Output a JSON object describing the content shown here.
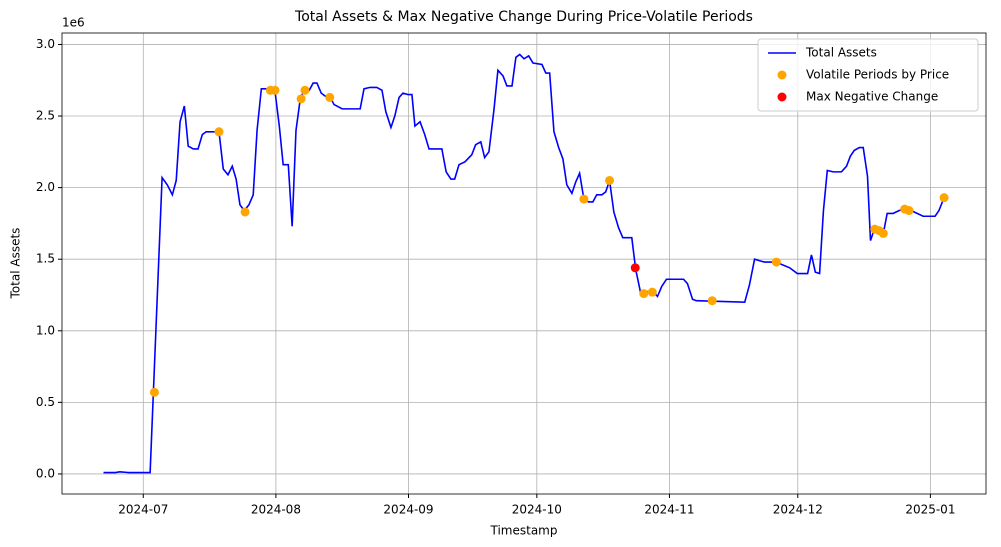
{
  "chart_data": {
    "type": "line",
    "title": "Total Assets & Max Negative Change During Price-Volatile Periods",
    "x_label": "Timestamp",
    "y_label": "Total Assets",
    "y_offset_label": "1e6",
    "xlim": [
      -19,
      197
    ],
    "ylim": [
      -0.14,
      3.08
    ],
    "xticks": [
      {
        "value": 0,
        "label": "2024-07"
      },
      {
        "value": 31,
        "label": "2024-08"
      },
      {
        "value": 62,
        "label": "2024-09"
      },
      {
        "value": 92,
        "label": "2024-10"
      },
      {
        "value": 123,
        "label": "2024-11"
      },
      {
        "value": 153,
        "label": "2024-12"
      },
      {
        "value": 184,
        "label": "2025-01"
      }
    ],
    "yticks": [
      {
        "value": 0,
        "label": "0.0"
      },
      0.5,
      {
        "value": 1,
        "label": "1.0"
      },
      1.5,
      {
        "value": 2,
        "label": "2.0"
      },
      2.5,
      {
        "value": 3,
        "label": "3.0"
      }
    ],
    "grid": true,
    "legend": "upper right",
    "series": [
      {
        "name": "Total Assets",
        "type": "line",
        "color": "#0000ff",
        "x": [
          -9.3,
          -6.5,
          -5.5,
          -3.5,
          1.6,
          4.4,
          5.6,
          6.8,
          7.7,
          8.6,
          9.6,
          10.5,
          11.7,
          12.8,
          13.8,
          14.7,
          17.7,
          18.7,
          19.8,
          20.8,
          21.7,
          22.6,
          23.6,
          24.7,
          25.7,
          26.6,
          27.6,
          29.2,
          30.8,
          31.8,
          32.7,
          33.9,
          34.8,
          35.7,
          36.7,
          37.6,
          38.8,
          39.7,
          40.6,
          41.6,
          42.5,
          43.7,
          44.6,
          46.5,
          50.7,
          51.6,
          53,
          54.6,
          55.8,
          56.7,
          57.9,
          58.8,
          59.8,
          60.7,
          61.9,
          62.8,
          63.5,
          64.7,
          65.8,
          66.8,
          69.8,
          70.8,
          71.9,
          72.8,
          73.8,
          75.2,
          76.8,
          77.7,
          78.9,
          79.8,
          80.8,
          82,
          82.9,
          84.1,
          85,
          86.2,
          87.1,
          88,
          89,
          90.1,
          91.1,
          93.2,
          94.1,
          95,
          96,
          97.1,
          98.1,
          99,
          100.2,
          101.1,
          102,
          103,
          104.1,
          105.1,
          106,
          107.2,
          108.1,
          109,
          110,
          111.1,
          112.1,
          114.2,
          115.1,
          116.3,
          117.2,
          118.2,
          119.3,
          120.2,
          121.2,
          122.3,
          126.3,
          127.2,
          128.4,
          129.3,
          140.6,
          141.7,
          142.9,
          144,
          145.2,
          147.6,
          148.7,
          151.1,
          152.9,
          155.3,
          156.2,
          157.1,
          158.1,
          159,
          159.9,
          161.3,
          163.2,
          164.4,
          165.3,
          166.2,
          167.4,
          168.3,
          169.3,
          170,
          170.9,
          172.1,
          173,
          173.9,
          175.3,
          176.7,
          178.1,
          179.5,
          180.9,
          182.3,
          185.1,
          186,
          187.2
        ],
        "values": [
          0.01,
          0.01,
          0.015,
          0.01,
          0.01,
          2.07,
          2.02,
          1.95,
          2.05,
          2.46,
          2.57,
          2.29,
          2.27,
          2.27,
          2.37,
          2.39,
          2.39,
          2.13,
          2.09,
          2.15,
          2.06,
          1.88,
          1.84,
          1.88,
          1.95,
          2.4,
          2.69,
          2.69,
          2.67,
          2.43,
          2.16,
          2.16,
          1.73,
          2.4,
          2.62,
          2.68,
          2.68,
          2.73,
          2.73,
          2.66,
          2.64,
          2.63,
          2.58,
          2.55,
          2.55,
          2.69,
          2.7,
          2.7,
          2.68,
          2.53,
          2.42,
          2.5,
          2.63,
          2.66,
          2.65,
          2.65,
          2.43,
          2.46,
          2.37,
          2.27,
          2.27,
          2.11,
          2.06,
          2.06,
          2.16,
          2.18,
          2.23,
          2.3,
          2.32,
          2.21,
          2.25,
          2.55,
          2.82,
          2.78,
          2.71,
          2.71,
          2.91,
          2.93,
          2.9,
          2.92,
          2.87,
          2.86,
          2.8,
          2.8,
          2.39,
          2.28,
          2.2,
          2.02,
          1.96,
          2.04,
          2.1,
          1.92,
          1.9,
          1.9,
          1.95,
          1.95,
          1.97,
          2.05,
          1.83,
          1.72,
          1.65,
          1.65,
          1.43,
          1.26,
          1.28,
          1.27,
          1.27,
          1.24,
          1.31,
          1.36,
          1.36,
          1.33,
          1.22,
          1.21,
          1.2,
          1.32,
          1.5,
          1.49,
          1.48,
          1.48,
          1.47,
          1.44,
          1.4,
          1.4,
          1.53,
          1.41,
          1.4,
          1.84,
          2.12,
          2.11,
          2.11,
          2.15,
          2.22,
          2.26,
          2.28,
          2.28,
          2.08,
          1.63,
          1.71,
          1.69,
          1.68,
          1.82,
          1.82,
          1.84,
          1.85,
          1.84,
          1.82,
          1.8,
          1.8,
          1.84,
          1.93
        ]
      },
      {
        "name": "Volatile Periods by Price",
        "type": "scatter",
        "color": "#ffa500",
        "x": [
          2.6,
          17.7,
          23.8,
          29.7,
          30.8,
          36.9,
          37.8,
          43.6,
          103,
          109,
          117,
          119,
          133,
          148,
          171,
          172,
          173,
          178,
          179,
          187.2
        ],
        "values": [
          0.57,
          2.39,
          1.83,
          2.68,
          2.68,
          2.62,
          2.68,
          2.63,
          1.92,
          2.05,
          1.26,
          1.27,
          1.21,
          1.48,
          1.71,
          1.7,
          1.68,
          1.85,
          1.84,
          1.93
        ]
      },
      {
        "name": "Max Negative Change",
        "type": "scatter",
        "color": "#ff0000",
        "x": [
          115
        ],
        "values": [
          1.44
        ]
      }
    ]
  }
}
